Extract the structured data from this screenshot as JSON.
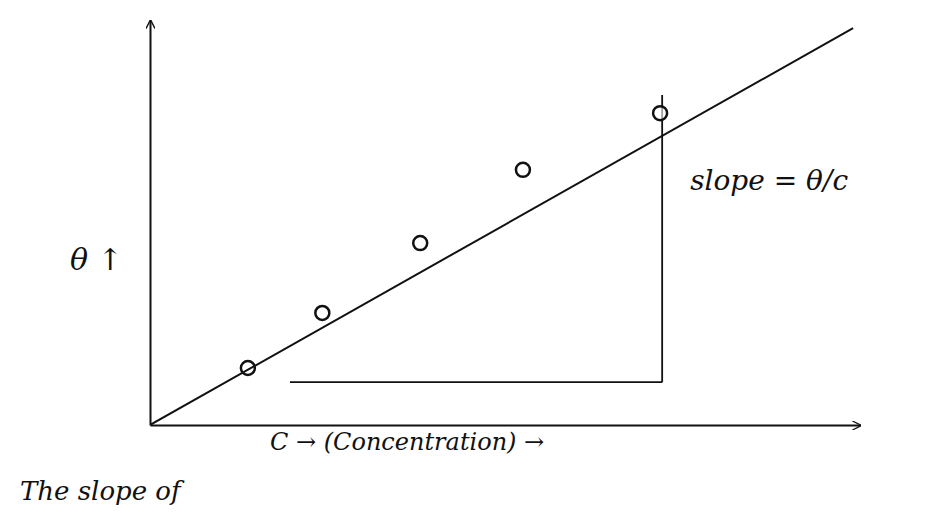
{
  "chart_data": {
    "type": "scatter",
    "x_label": "C → (Concentration) →",
    "y_label": "θ ↑",
    "annotation": "slope = θ/c",
    "caption": "The slope of",
    "xlim": [
      0,
      10.3
    ],
    "ylim": [
      0,
      12
    ],
    "tick_labels": false,
    "grid": false,
    "series": [
      {
        "type": "scatter",
        "color": "#111111",
        "marker": "circle",
        "x": [
          1.42,
          2.5,
          3.92,
          5.41,
          7.4
        ],
        "values": [
          1.69,
          3.32,
          5.39,
          7.56,
          9.24
        ]
      },
      {
        "type": "line",
        "color": "#111111",
        "line_style": "solid",
        "x": [
          0,
          10.2
        ],
        "values": [
          0,
          11.76
        ]
      }
    ],
    "slope_triangle": {
      "x": [
        2.03,
        7.43
      ],
      "y": [
        1.27,
        9.78
      ]
    }
  }
}
